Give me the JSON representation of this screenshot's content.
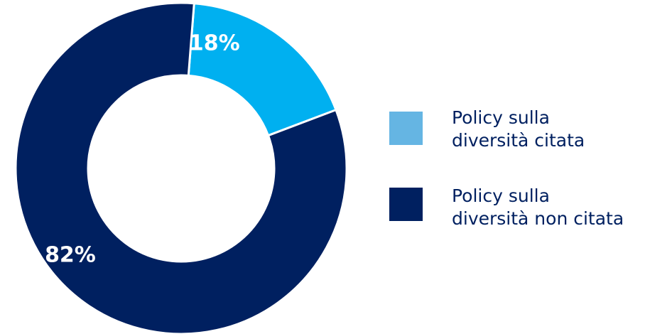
{
  "chart_data": {
    "type": "pie",
    "donut": true,
    "title": "",
    "categories": [
      "Policy sulla diversità citata",
      "Policy sulla diversità non citata"
    ],
    "values": [
      18,
      82
    ],
    "data_labels": [
      "18%",
      "82%"
    ],
    "colors": [
      "#00b0f0",
      "#002060"
    ],
    "legend_colors": [
      "#65b5e3",
      "#002060"
    ],
    "legend_position": "right"
  },
  "legend": {
    "items": [
      {
        "line1": "Policy sulla",
        "line2": "diversità citata"
      },
      {
        "line1": "Policy sulla",
        "line2": "diversità non citata"
      }
    ]
  }
}
